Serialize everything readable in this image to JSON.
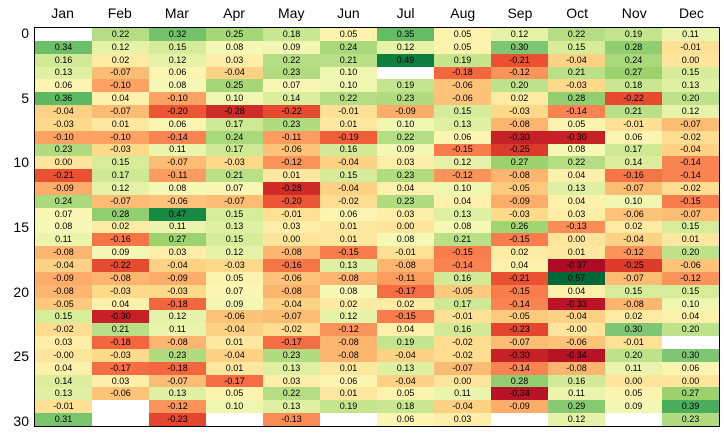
{
  "chart_data": {
    "type": "heatmap",
    "title": "",
    "xlabel": "",
    "ylabel": "",
    "legend": "none",
    "grid": false,
    "columns": [
      "Jan",
      "Feb",
      "Mar",
      "Apr",
      "May",
      "Jun",
      "Jul",
      "Aug",
      "Sep",
      "Oct",
      "Nov",
      "Dec"
    ],
    "rows": [
      0,
      1,
      2,
      3,
      4,
      5,
      6,
      7,
      8,
      9,
      10,
      11,
      12,
      13,
      14,
      15,
      16,
      17,
      18,
      19,
      20,
      21,
      22,
      23,
      24,
      25,
      26,
      27,
      28,
      29,
      30
    ],
    "y_tick_labels": [
      "0",
      "5",
      "10",
      "15",
      "20",
      "25",
      "30"
    ],
    "y_tick_rows": [
      0,
      5,
      10,
      15,
      20,
      25,
      30
    ],
    "values": [
      [
        null,
        "0.22",
        "0.32",
        "0.25",
        "0.18",
        "0.05",
        "0.35",
        "0.05",
        "0.12",
        "0.22",
        "0.19",
        "0.11"
      ],
      [
        "0.34",
        "0.12",
        "0.15",
        "0.08",
        "0.09",
        "0.24",
        "0.12",
        "0.05",
        "0.30",
        "0.15",
        "0.28",
        "-0.01"
      ],
      [
        "0.16",
        "0.02",
        "0.12",
        "0.03",
        "0.22",
        "0.21",
        "0.49",
        "0.19",
        "-0.21",
        "-0.04",
        "0.24",
        "0.00"
      ],
      [
        "0.13",
        "-0.07",
        "0.06",
        "-0.04",
        "0.23",
        "0.10",
        null,
        "-0.18",
        "-0.12",
        "0.21",
        "0.27",
        "0.15"
      ],
      [
        "0.06",
        "-0.10",
        "0.08",
        "0.25",
        "0.07",
        "0.10",
        "0.19",
        "-0.06",
        "0.20",
        "-0.03",
        "0.18",
        "0.13"
      ],
      [
        "0.36",
        "0.04",
        "-0.10",
        "0.10",
        "0.14",
        "0.22",
        "0.23",
        "-0.06",
        "0.02",
        "0.28",
        "-0.22",
        "0.20"
      ],
      [
        "-0.04",
        "-0.07",
        "-0.20",
        "-0.28",
        "-0.22",
        "-0.01",
        "-0.09",
        "0.15",
        "-0.03",
        "-0.14",
        "0.21",
        "0.12"
      ],
      [
        "-0.03",
        "0.01",
        "0.06",
        "0.17",
        "0.23",
        "0.01",
        "0.10",
        "0.13",
        "-0.08",
        "0.05",
        "-0.01",
        "-0.07"
      ],
      [
        "-0.10",
        "-0.10",
        "-0.14",
        "0.24",
        "-0.11",
        "-0.19",
        "0.22",
        "0.06",
        "-0.30",
        "-0.30",
        "0.06",
        "-0.02"
      ],
      [
        "0.23",
        "-0.03",
        "0.11",
        "0.17",
        "-0.06",
        "0.16",
        "0.09",
        "-0.15",
        "-0.25",
        "0.08",
        "0.17",
        "-0.04"
      ],
      [
        "0.00",
        "0.15",
        "-0.07",
        "-0.03",
        "-0.12",
        "-0.04",
        "0.03",
        "0.12",
        "0.27",
        "0.22",
        "0.14",
        "-0.14"
      ],
      [
        "-0.21",
        "0.17",
        "-0.11",
        "0.21",
        "0.01",
        "0.15",
        "0.23",
        "-0.12",
        "-0.08",
        "0.04",
        "-0.16",
        "-0.14"
      ],
      [
        "-0.09",
        "0.12",
        "0.08",
        "0.07",
        "-0.28",
        "-0.04",
        "0.04",
        "0.10",
        "-0.05",
        "0.13",
        "-0.07",
        "-0.02"
      ],
      [
        "0.24",
        "-0.07",
        "-0.06",
        "-0.07",
        "-0.20",
        "-0.02",
        "0.23",
        "0.04",
        "-0.09",
        "0.04",
        "0.10",
        "-0.15"
      ],
      [
        "0.07",
        "0.28",
        "0.47",
        "0.15",
        "-0.01",
        "0.06",
        "0.03",
        "0.13",
        "-0.03",
        "0.03",
        "-0.06",
        "-0.07"
      ],
      [
        "0.08",
        "0.02",
        "0.11",
        "0.13",
        "0.03",
        "0.01",
        "0.00",
        "0.08",
        "0.26",
        "-0.13",
        "0.02",
        "0.15"
      ],
      [
        "0.11",
        "-0.16",
        "0.27",
        "0.15",
        "0.00",
        "0.01",
        "0.08",
        "0.21",
        "-0.15",
        "0.00",
        "-0.04",
        "0.01"
      ],
      [
        "-0.08",
        "0.09",
        "0.03",
        "0.12",
        "-0.08",
        "-0.15",
        "-0.01",
        "-0.15",
        "0.02",
        "0.01",
        "-0.12",
        "0.20"
      ],
      [
        "-0.04",
        "-0.22",
        "-0.04",
        "-0.03",
        "-0.16",
        "0.13",
        "-0.08",
        "-0.14",
        "0.04",
        "-0.37",
        "-0.25",
        "-0.06"
      ],
      [
        "-0.09",
        "-0.08",
        "-0.09",
        "0.05",
        "-0.06",
        "-0.08",
        "-0.11",
        "0.16",
        "-0.21",
        "0.57",
        "-0.07",
        "-0.12"
      ],
      [
        "-0.08",
        "-0.03",
        "-0.03",
        "0.07",
        "-0.08",
        "0.08",
        "-0.17",
        "-0.05",
        "-0.15",
        "0.04",
        "0.15",
        "0.15"
      ],
      [
        "-0.05",
        "0.04",
        "-0.18",
        "0.09",
        "-0.04",
        "0.02",
        "0.02",
        "0.17",
        "-0.14",
        "-0.33",
        "-0.08",
        "0.10"
      ],
      [
        "0.15",
        "-0.30",
        "0.12",
        "-0.06",
        "-0.07",
        "0.12",
        "-0.15",
        "-0.01",
        "-0.05",
        "-0.04",
        "0.02",
        "0.04"
      ],
      [
        "-0.02",
        "0.21",
        "0.11",
        "-0.04",
        "-0.02",
        "-0.12",
        "0.04",
        "0.16",
        "-0.23",
        "-0.00",
        "0.30",
        "0.20"
      ],
      [
        "0.03",
        "-0.18",
        "-0.08",
        "0.01",
        "-0.17",
        "-0.08",
        "0.19",
        "-0.02",
        "-0.07",
        "-0.06",
        "-0.01",
        null
      ],
      [
        "-0.00",
        "-0.03",
        "0.23",
        "-0.04",
        "0.23",
        "-0.08",
        "-0.04",
        "-0.02",
        "-0.30",
        "-0.34",
        "0.20",
        "0.30"
      ],
      [
        "0.04",
        "-0.17",
        "-0.18",
        "0.01",
        "0.13",
        "0.01",
        "0.13",
        "-0.07",
        "-0.14",
        "-0.08",
        "0.11",
        "0.06"
      ],
      [
        "0.14",
        "0.03",
        "-0.07",
        "-0.17",
        "0.03",
        "0.06",
        "-0.04",
        "0.00",
        "0.28",
        "0.16",
        "0.00",
        "0.00"
      ],
      [
        "0.13",
        "-0.06",
        "0.13",
        "0.05",
        "0.22",
        "0.01",
        "0.05",
        "0.11",
        "-0.34",
        "0.11",
        "0.05",
        "0.27"
      ],
      [
        "-0.01",
        null,
        "-0.12",
        "0.10",
        "0.13",
        "0.19",
        "0.18",
        "-0.04",
        "-0.09",
        "0.29",
        "0.09",
        "0.39"
      ],
      [
        "0.31",
        null,
        "-0.23",
        null,
        "-0.13",
        null,
        "0.06",
        "0.03",
        null,
        "0.12",
        null,
        "0.23"
      ]
    ],
    "colormap": {
      "name": "red-yellow-green",
      "missing_color": "#ffffff",
      "text_color": "#000000",
      "frame_color": "#000000",
      "stops": [
        [
          -0.4,
          "#a50026"
        ],
        [
          -0.37,
          "#ae0b25"
        ],
        [
          -0.33,
          "#ba1426"
        ],
        [
          -0.3,
          "#c72128"
        ],
        [
          -0.25,
          "#dc3a2b"
        ],
        [
          -0.22,
          "#e64a2f"
        ],
        [
          -0.2,
          "#ed5634"
        ],
        [
          -0.18,
          "#f3663e"
        ],
        [
          -0.15,
          "#f87c4c"
        ],
        [
          -0.12,
          "#fb945a"
        ],
        [
          -0.1,
          "#fca363"
        ],
        [
          -0.08,
          "#fdb56f"
        ],
        [
          -0.05,
          "#fdca7d"
        ],
        [
          -0.03,
          "#fdd98a"
        ],
        [
          -0.01,
          "#fee195"
        ],
        [
          0.0,
          "#fee59b"
        ],
        [
          0.02,
          "#feeba3"
        ],
        [
          0.04,
          "#fdf0aa"
        ],
        [
          0.06,
          "#fbf5b1"
        ],
        [
          0.08,
          "#f6f8b5"
        ],
        [
          0.1,
          "#eff6b0"
        ],
        [
          0.12,
          "#e5f2a7"
        ],
        [
          0.15,
          "#d7ec99"
        ],
        [
          0.18,
          "#c9e691"
        ],
        [
          0.2,
          "#bee289"
        ],
        [
          0.22,
          "#b5de84"
        ],
        [
          0.25,
          "#a5d776"
        ],
        [
          0.27,
          "#9bd26e"
        ],
        [
          0.3,
          "#7ec673"
        ],
        [
          0.32,
          "#75c26d"
        ],
        [
          0.34,
          "#6cbe69"
        ],
        [
          0.36,
          "#5fb862"
        ],
        [
          0.39,
          "#4aad5b"
        ],
        [
          0.42,
          "#339f52"
        ],
        [
          0.45,
          "#1f9249"
        ],
        [
          0.49,
          "#0e7f41"
        ],
        [
          0.53,
          "#05733c"
        ],
        [
          0.57,
          "#006837"
        ]
      ]
    }
  }
}
